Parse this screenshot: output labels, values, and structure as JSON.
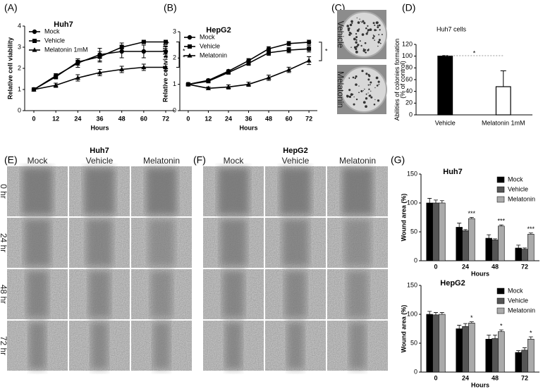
{
  "panel_labels": [
    "(A)",
    "(B)",
    "(C)",
    "(D)",
    "(E)",
    "(F)",
    "(G)"
  ],
  "colony_photos": {
    "labels": [
      "Vehicle",
      "Melatonin"
    ]
  },
  "wound_photos": [
    {
      "title": "Huh7",
      "columns": [
        "Mock",
        "Vehicle",
        "Melatonin"
      ],
      "rows": [
        "0 hr",
        "24 hr",
        "48 hr",
        "72 hr"
      ]
    },
    {
      "title": "HepG2",
      "columns": [
        "Mock",
        "Vehicle",
        "Melatonin"
      ]
    }
  ],
  "chart_data": [
    {
      "type": "line",
      "title": "Huh7",
      "x_label": "Hours",
      "y_label": "Relative cell viability",
      "x": [
        0,
        12,
        24,
        36,
        48,
        60,
        72
      ],
      "xlim": [
        -5,
        77
      ],
      "xticks": [
        0,
        12,
        24,
        36,
        48,
        60,
        72
      ],
      "ylim": [
        0,
        4
      ],
      "yticks": [
        0,
        1,
        2,
        3,
        4
      ],
      "legend": "upper left",
      "series": [
        {
          "name": "Mock",
          "marker": "circle",
          "color": "#000000",
          "values": [
            1,
            1.65,
            2.25,
            2.65,
            2.8,
            2.8,
            2.8
          ],
          "errors": [
            0.05,
            0.1,
            0.2,
            0.3,
            0.3,
            0.3,
            0.25
          ]
        },
        {
          "name": "Vehicle",
          "marker": "square",
          "color": "#000000",
          "values": [
            1,
            1.6,
            2.3,
            2.55,
            3.0,
            3.25,
            3.25
          ],
          "errors": [
            0.05,
            0.1,
            0.15,
            0.25,
            0.2,
            0.05,
            0.05
          ]
        },
        {
          "name": "Melatonin 1mM",
          "marker": "triangle",
          "color": "#000000",
          "values": [
            1,
            1.2,
            1.55,
            1.8,
            1.95,
            2.05,
            2.05
          ],
          "errors": [
            0.05,
            0.1,
            0.15,
            0.15,
            0.15,
            0.15,
            0.15
          ]
        }
      ],
      "significance": [
        "*",
        "*"
      ]
    },
    {
      "type": "line",
      "title": "HepG2",
      "x_label": "Hours",
      "y_label": "Relative cell viability",
      "x": [
        0,
        12,
        24,
        36,
        48,
        60,
        72
      ],
      "xlim": [
        -5,
        77
      ],
      "xticks": [
        0,
        12,
        24,
        36,
        48,
        60,
        72
      ],
      "ylim": [
        0,
        3
      ],
      "yticks": [
        0,
        1,
        2,
        3
      ],
      "legend": "upper left",
      "series": [
        {
          "name": "Mock",
          "marker": "circle",
          "color": "#000000",
          "values": [
            1,
            1.15,
            1.5,
            1.9,
            2.35,
            2.55,
            2.6
          ],
          "errors": [
            0.03,
            0.05,
            0.05,
            0.08,
            0.08,
            0.08,
            0.08
          ]
        },
        {
          "name": "Vehicle",
          "marker": "square",
          "color": "#000000",
          "values": [
            1,
            1.12,
            1.45,
            1.8,
            2.2,
            2.3,
            2.35
          ],
          "errors": [
            0.03,
            0.05,
            0.05,
            0.08,
            0.1,
            0.1,
            0.12
          ]
        },
        {
          "name": "Melatonin",
          "marker": "triangle",
          "color": "#000000",
          "values": [
            1,
            0.85,
            0.9,
            1.0,
            1.25,
            1.55,
            1.9
          ],
          "errors": [
            0.03,
            0.05,
            0.08,
            0.08,
            0.1,
            0.1,
            0.15
          ]
        }
      ],
      "significance": [
        "*"
      ]
    },
    {
      "type": "bar",
      "title": "Huh7 cells",
      "y_label": "Abilities of colonies formation (% of control)",
      "categories": [
        "Vehicle",
        "Melatonin 1mM"
      ],
      "values": [
        100,
        48
      ],
      "errors": [
        1,
        27
      ],
      "colors": [
        "#000000",
        "#ffffff"
      ],
      "ylim": [
        0,
        120
      ],
      "yticks": [
        0,
        20,
        40,
        60,
        80,
        100,
        120
      ],
      "significance": "*"
    },
    {
      "type": "grouped_bar",
      "title": "Huh7",
      "x_label": "Hours",
      "y_label": "Wound area (%)",
      "categories": [
        "0",
        "24",
        "48",
        "72"
      ],
      "ylim": [
        0,
        150
      ],
      "yticks": [
        0,
        50,
        100,
        150
      ],
      "legend": "upper right",
      "series": [
        {
          "name": "Mock",
          "color": "#000000",
          "values": [
            100,
            58,
            39,
            22
          ],
          "errors": [
            8,
            7,
            6,
            5
          ]
        },
        {
          "name": "Vehicle",
          "color": "#555555",
          "values": [
            100,
            52,
            36,
            20
          ],
          "errors": [
            5,
            2,
            2,
            2
          ]
        },
        {
          "name": "Melatonin",
          "color": "#aaaaaa",
          "values": [
            100,
            73,
            60,
            46
          ],
          "errors": [
            4,
            2,
            2,
            2
          ]
        }
      ],
      "significance": [
        null,
        "***",
        "***",
        "***"
      ]
    },
    {
      "type": "grouped_bar",
      "title": "HepG2",
      "x_label": "Hours",
      "y_label": "Wound area (%)",
      "categories": [
        "0",
        "24",
        "48",
        "72"
      ],
      "ylim": [
        0,
        150
      ],
      "yticks": [
        0,
        50,
        100,
        150
      ],
      "legend": "upper right",
      "series": [
        {
          "name": "Mock",
          "color": "#000000",
          "values": [
            100,
            75,
            57,
            34
          ],
          "errors": [
            5,
            6,
            7,
            3
          ]
        },
        {
          "name": "Vehicle",
          "color": "#555555",
          "values": [
            99,
            79,
            58,
            38
          ],
          "errors": [
            4,
            5,
            6,
            4
          ]
        },
        {
          "name": "Melatonin",
          "color": "#aaaaaa",
          "values": [
            100,
            85,
            70,
            57
          ],
          "errors": [
            3,
            2,
            3,
            4
          ]
        }
      ],
      "significance": [
        null,
        "*",
        "*",
        "*"
      ]
    }
  ]
}
